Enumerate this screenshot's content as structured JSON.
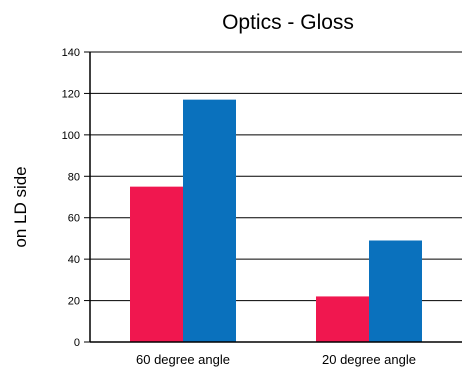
{
  "chart_data": {
    "type": "bar",
    "title": "Optics - Gloss",
    "xlabel": "",
    "ylabel": "on LD side",
    "categories": [
      "60 degree angle",
      "20 degree angle"
    ],
    "series": [
      {
        "values": [
          75,
          22
        ],
        "color": "#f0174f"
      },
      {
        "values": [
          117,
          49
        ],
        "color": "#0a71bd"
      }
    ],
    "ylim": [
      0,
      140
    ],
    "yticks": [
      0,
      20,
      40,
      60,
      80,
      100,
      120,
      140
    ],
    "grid": true,
    "legend": "none"
  }
}
